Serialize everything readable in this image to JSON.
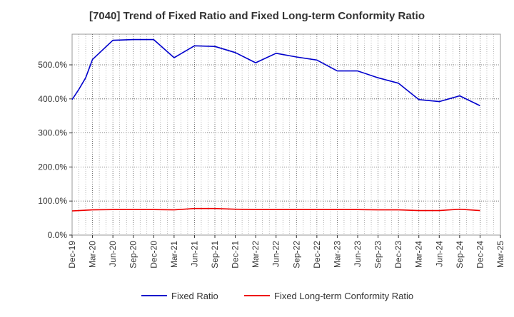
{
  "chart_data": {
    "type": "line",
    "title": "[7040]  Trend of Fixed Ratio and Fixed Long-term Conformity Ratio",
    "xlabel": "",
    "ylabel": "",
    "x_ticks": [
      "Dec-19",
      "Mar-20",
      "Jun-20",
      "Sep-20",
      "Dec-20",
      "Mar-21",
      "Jun-21",
      "Sep-21",
      "Dec-21",
      "Mar-22",
      "Jun-22",
      "Sep-22",
      "Dec-22",
      "Mar-23",
      "Jun-23",
      "Sep-23",
      "Dec-23",
      "Mar-24",
      "Jun-24",
      "Sep-24",
      "Dec-24",
      "Mar-25"
    ],
    "y_ticks": [
      "0.0%",
      "100.0%",
      "200.0%",
      "300.0%",
      "400.0%",
      "500.0%"
    ],
    "ylim": [
      0,
      590
    ],
    "grid": true,
    "legend_position": "bottom",
    "series": [
      {
        "name": "Fixed Ratio",
        "color": "#0000cc",
        "x": [
          "Dec-19",
          "Jan-20",
          "Feb-20",
          "Mar-20",
          "Jun-20",
          "Sep-20",
          "Dec-20",
          "Mar-21",
          "Jun-21",
          "Sep-21",
          "Dec-21",
          "Mar-22",
          "Jun-22",
          "Sep-22",
          "Dec-22",
          "Mar-23",
          "Jun-23",
          "Sep-23",
          "Dec-23",
          "Mar-24",
          "Jun-24",
          "Sep-24",
          "Dec-24"
        ],
        "values": [
          398,
          428,
          462,
          516,
          572,
          574,
          574,
          521,
          556,
          554,
          536,
          506,
          534,
          523,
          514,
          482,
          482,
          462,
          446,
          398,
          392,
          409,
          380
        ]
      },
      {
        "name": "Fixed Long-term Conformity Ratio",
        "color": "#ee0000",
        "x": [
          "Dec-19",
          "Mar-20",
          "Jun-20",
          "Sep-20",
          "Dec-20",
          "Mar-21",
          "Jun-21",
          "Sep-21",
          "Dec-21",
          "Mar-22",
          "Jun-22",
          "Sep-22",
          "Dec-22",
          "Mar-23",
          "Jun-23",
          "Sep-23",
          "Dec-23",
          "Mar-24",
          "Jun-24",
          "Sep-24",
          "Dec-24"
        ],
        "values": [
          71,
          74,
          75,
          75,
          75,
          74,
          78,
          78,
          76,
          75,
          75,
          75,
          75,
          75,
          75,
          74,
          74,
          72,
          72,
          76,
          72
        ]
      }
    ]
  }
}
